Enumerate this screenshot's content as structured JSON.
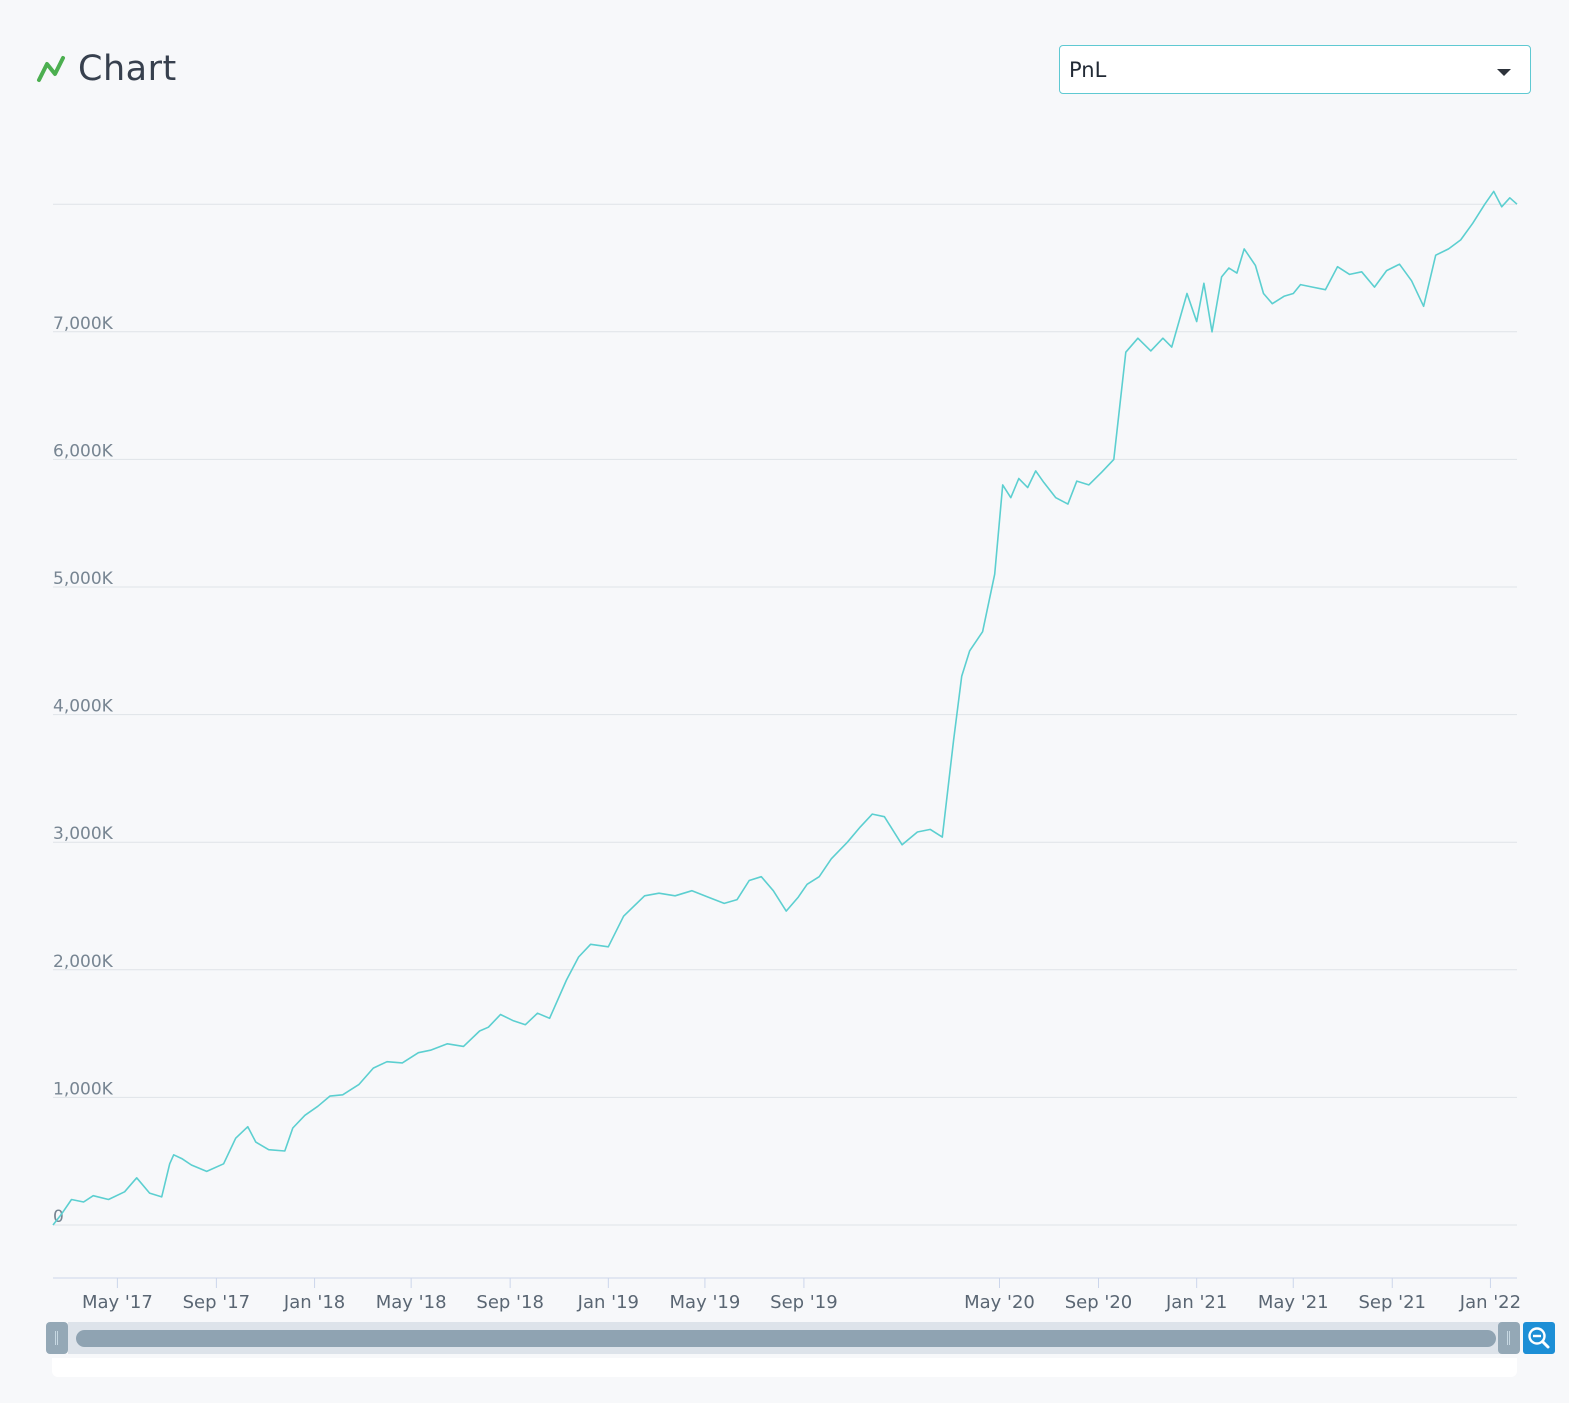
{
  "header": {
    "title": "Chart",
    "icon": "line-chart-icon",
    "icon_color": "#4caf50"
  },
  "metric_select": {
    "selected": "PnL",
    "icon": "caret-down-icon",
    "border_color": "#5fc9d2"
  },
  "navigator": {
    "zoom_icon": "zoom-out-icon",
    "zoom_button_color": "#1d8fd6"
  },
  "chart_data": {
    "type": "line",
    "title": "",
    "xlabel": "",
    "ylabel": "",
    "grid": true,
    "line_color": "#5ccfd0",
    "xlim": [
      "2017-02-10",
      "2022-02-03"
    ],
    "ylim": [
      -100,
      8250
    ],
    "y_ticks": [
      0,
      1000,
      2000,
      3000,
      4000,
      5000,
      6000,
      7000
    ],
    "y_tick_labels": [
      "0",
      "1,000K",
      "2,000K",
      "3,000K",
      "4,000K",
      "5,000K",
      "6,000K",
      "7,000K"
    ],
    "y_top_grid": 8000,
    "x_ticks": [
      {
        "date": "2017-05-01",
        "label": "May '17"
      },
      {
        "date": "2017-09-01",
        "label": "Sep '17"
      },
      {
        "date": "2018-01-01",
        "label": "Jan '18"
      },
      {
        "date": "2018-05-01",
        "label": "May '18"
      },
      {
        "date": "2018-09-01",
        "label": "Sep '18"
      },
      {
        "date": "2019-01-01",
        "label": "Jan '19"
      },
      {
        "date": "2019-05-01",
        "label": "May '19"
      },
      {
        "date": "2019-09-01",
        "label": "Sep '19"
      },
      {
        "date": "2020-05-01",
        "label": "May '20"
      },
      {
        "date": "2020-09-01",
        "label": "Sep '20"
      },
      {
        "date": "2021-01-01",
        "label": "Jan '21"
      },
      {
        "date": "2021-05-01",
        "label": "May '21"
      },
      {
        "date": "2021-09-01",
        "label": "Sep '21"
      },
      {
        "date": "2022-01-01",
        "label": "Jan '22"
      }
    ],
    "series": [
      {
        "x": [
          "2017-02-10",
          "2017-02-20",
          "2017-03-05",
          "2017-03-20",
          "2017-04-01",
          "2017-04-20",
          "2017-05-10",
          "2017-05-25",
          "2017-06-10",
          "2017-06-25",
          "2017-07-05",
          "2017-07-10",
          "2017-07-20",
          "2017-08-01",
          "2017-08-20",
          "2017-09-10",
          "2017-09-25",
          "2017-10-10",
          "2017-10-20",
          "2017-11-05",
          "2017-11-25",
          "2017-12-05",
          "2017-12-20",
          "2018-01-05",
          "2018-01-20",
          "2018-02-05",
          "2018-02-25",
          "2018-03-15",
          "2018-04-01",
          "2018-04-20",
          "2018-05-10",
          "2018-05-25",
          "2018-06-15",
          "2018-07-05",
          "2018-07-25",
          "2018-08-05",
          "2018-08-20",
          "2018-09-05",
          "2018-09-20",
          "2018-10-05",
          "2018-10-20",
          "2018-11-10",
          "2018-11-25",
          "2018-12-10",
          "2019-01-01",
          "2019-01-20",
          "2019-02-15",
          "2019-03-05",
          "2019-03-25",
          "2019-04-15",
          "2019-05-05",
          "2019-05-25",
          "2019-06-10",
          "2019-06-25",
          "2019-07-10",
          "2019-07-25",
          "2019-08-10",
          "2019-08-25",
          "2019-09-05",
          "2019-09-20",
          "2019-10-05",
          "2019-10-25",
          "2019-11-10",
          "2019-11-25",
          "2019-12-10",
          "2020-01-01",
          "2020-01-20",
          "2020-02-05",
          "2020-02-20",
          "2020-03-05",
          "2020-03-15",
          "2020-03-25",
          "2020-04-10",
          "2020-04-25",
          "2020-05-05",
          "2020-05-15",
          "2020-05-25",
          "2020-06-05",
          "2020-06-15",
          "2020-06-25",
          "2020-07-10",
          "2020-07-25",
          "2020-08-05",
          "2020-08-20",
          "2020-09-05",
          "2020-09-20",
          "2020-10-05",
          "2020-10-20",
          "2020-11-05",
          "2020-11-20",
          "2020-12-01",
          "2020-12-20",
          "2021-01-01",
          "2021-01-10",
          "2021-01-20",
          "2021-02-01",
          "2021-02-10",
          "2021-02-20",
          "2021-03-01",
          "2021-03-15",
          "2021-03-25",
          "2021-04-05",
          "2021-04-20",
          "2021-05-01",
          "2021-05-10",
          "2021-05-25",
          "2021-06-10",
          "2021-06-25",
          "2021-07-10",
          "2021-07-25",
          "2021-08-10",
          "2021-08-25",
          "2021-09-10",
          "2021-09-25",
          "2021-10-10",
          "2021-10-25",
          "2021-11-10",
          "2021-11-25",
          "2021-12-10",
          "2021-12-25",
          "2022-01-05",
          "2022-01-15",
          "2022-01-25",
          "2022-02-03"
        ],
        "y": [
          0,
          80,
          200,
          180,
          230,
          200,
          260,
          370,
          250,
          220,
          480,
          550,
          520,
          470,
          420,
          480,
          680,
          770,
          650,
          590,
          580,
          760,
          860,
          930,
          1010,
          1020,
          1100,
          1230,
          1280,
          1270,
          1350,
          1370,
          1420,
          1400,
          1520,
          1550,
          1650,
          1600,
          1570,
          1660,
          1620,
          1920,
          2100,
          2200,
          2180,
          2420,
          2580,
          2600,
          2580,
          2620,
          2570,
          2520,
          2550,
          2700,
          2730,
          2620,
          2460,
          2570,
          2670,
          2730,
          2870,
          3000,
          3120,
          3220,
          3200,
          2980,
          3080,
          3100,
          3040,
          3800,
          4300,
          4500,
          4650,
          5100,
          5800,
          5700,
          5850,
          5780,
          5910,
          5820,
          5700,
          5650,
          5830,
          5800,
          5900,
          6000,
          6840,
          6950,
          6850,
          6950,
          6880,
          7300,
          7080,
          7380,
          7000,
          7430,
          7500,
          7460,
          7650,
          7520,
          7300,
          7220,
          7280,
          7300,
          7370,
          7350,
          7330,
          7510,
          7450,
          7470,
          7350,
          7480,
          7530,
          7400,
          7200,
          7600,
          7650,
          7720,
          7850,
          8000,
          8100,
          7980,
          8050,
          8000
        ]
      }
    ]
  }
}
